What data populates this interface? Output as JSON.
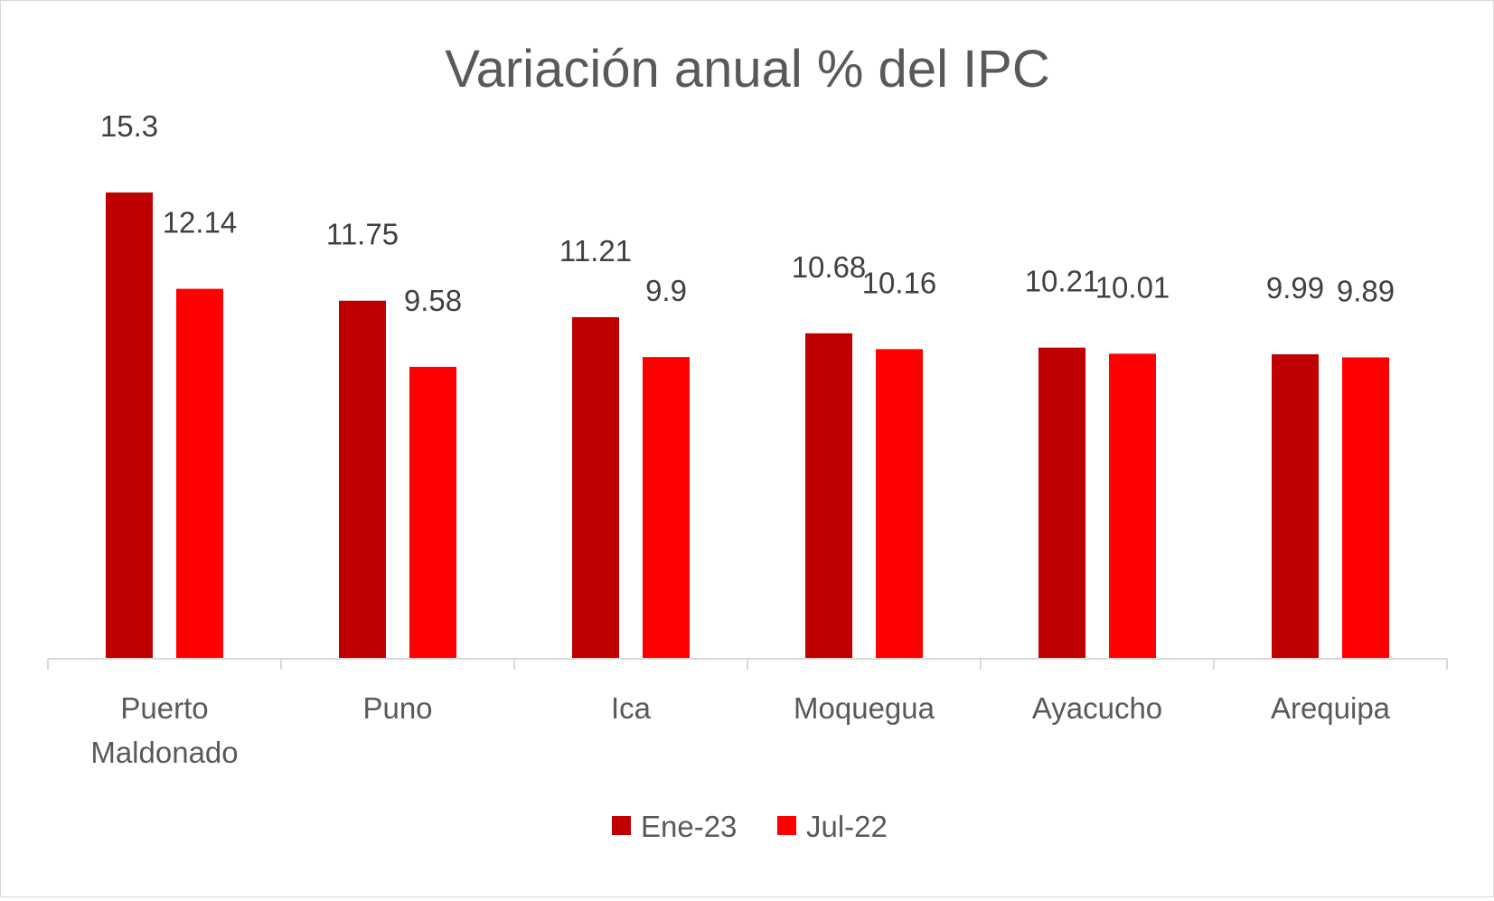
{
  "chart_data": {
    "type": "bar",
    "title": "Variación anual % del IPC",
    "categories": [
      [
        "Puerto",
        "Maldonado"
      ],
      [
        "Puno"
      ],
      [
        "Ica"
      ],
      [
        "Moquegua"
      ],
      [
        "Ayacucho"
      ],
      [
        "Arequipa"
      ]
    ],
    "series": [
      {
        "name": "Ene-23",
        "color": "#C00000",
        "values": [
          15.3,
          11.75,
          11.21,
          10.68,
          10.21,
          9.99
        ]
      },
      {
        "name": "Jul-22",
        "color": "#FF0000",
        "values": [
          12.14,
          9.58,
          9.9,
          10.16,
          10.01,
          9.89
        ]
      }
    ],
    "ylim": [
      0,
      15.3
    ],
    "grid": false,
    "legend_position": "bottom",
    "data_labels": true
  }
}
